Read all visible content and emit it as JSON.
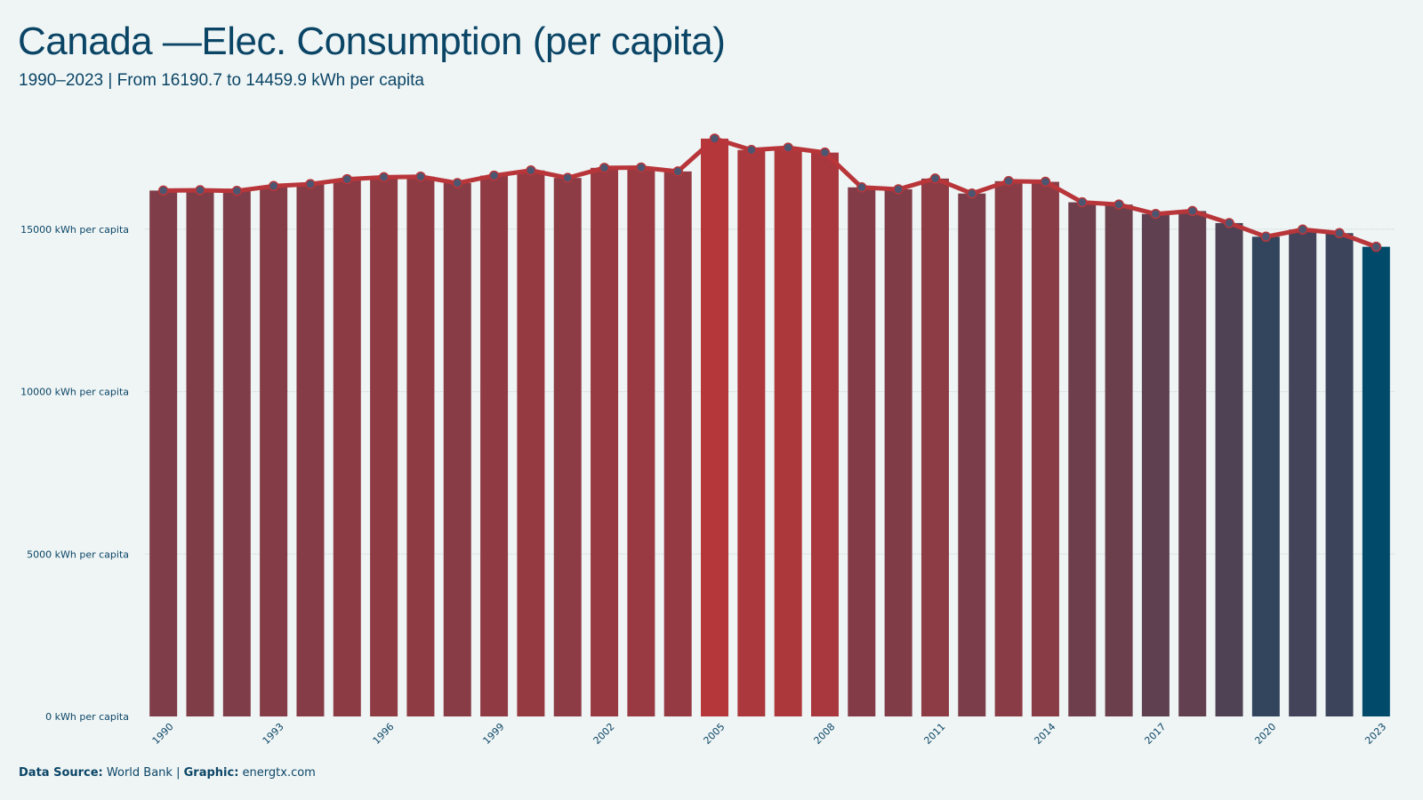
{
  "header": {
    "title": "Canada —Elec. Consumption (per capita)",
    "subtitle": "1990–2023 | From 16190.7  to 14459.9  kWh per capita"
  },
  "footer": {
    "source_label": "Data Source:",
    "source_value": "World Bank",
    "separator": "|",
    "graphic_label": "Graphic:",
    "graphic_value": "energtx.com"
  },
  "colors": {
    "background": "#eff5f5",
    "text": "#0b4566",
    "line": "#b8363a",
    "bar_high": "#b5373a",
    "bar_low": "#014a6a",
    "grid": "#c9d3d3"
  },
  "chart_data": {
    "type": "bar",
    "title": "Canada —Elec. Consumption (per capita)",
    "subtitle": "1990–2023 | From 16190.7  to 14459.9  kWh per capita",
    "xlabel": "",
    "ylabel": "",
    "categories": [
      "1990",
      "1991",
      "1992",
      "1993",
      "1994",
      "1995",
      "1996",
      "1997",
      "1998",
      "1999",
      "2000",
      "2001",
      "2002",
      "2003",
      "2004",
      "2005",
      "2006",
      "2007",
      "2008",
      "2009",
      "2010",
      "2011",
      "2012",
      "2013",
      "2014",
      "2015",
      "2016",
      "2017",
      "2018",
      "2019",
      "2020",
      "2021",
      "2022",
      "2023"
    ],
    "x_tick_labels": [
      "1990",
      "1993",
      "1996",
      "1999",
      "2002",
      "2005",
      "2008",
      "2011",
      "2014",
      "2017",
      "2020",
      "2023"
    ],
    "series": [
      {
        "values": [
          16190.7,
          16200,
          16180,
          16330,
          16390,
          16540,
          16600,
          16620,
          16420,
          16650,
          16810,
          16580,
          16890,
          16900,
          16780,
          17790,
          17440,
          17510,
          17360,
          16290,
          16230,
          16560,
          16100,
          16480,
          16460,
          15830,
          15760,
          15470,
          15560,
          15190,
          14770,
          14990,
          14880,
          14459.9
        ]
      }
    ],
    "overlay_line": true,
    "ylim": [
      0,
      18500
    ],
    "y_ticks": [
      0,
      5000,
      10000,
      15000
    ],
    "y_tick_suffix": " kWh per capita",
    "grid": true,
    "legend": "none"
  }
}
